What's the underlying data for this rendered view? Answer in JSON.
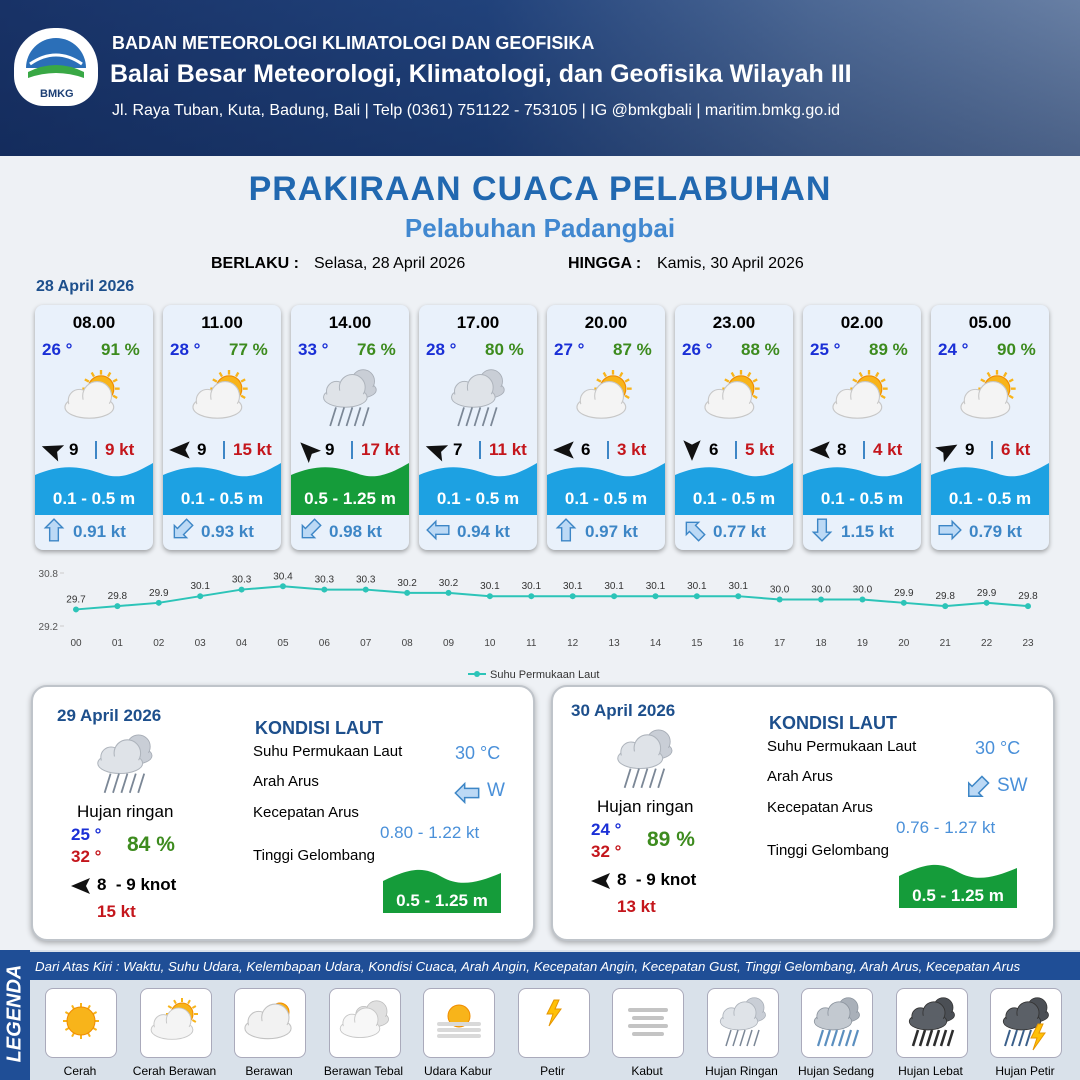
{
  "header": {
    "agency": "BADAN METEOROLOGI KLIMATOLOGI DAN GEOFISIKA",
    "office": "Balai Besar Meteorologi, Klimatologi, dan Geofisika Wilayah III",
    "address": "Jl. Raya Tuban, Kuta, Badung, Bali | Telp (0361) 751122 - 753105 | IG @bmkgbali | maritim.bmkg.go.id",
    "logo_text": "BMKG"
  },
  "title": "PRAKIRAAN CUACA PELABUHAN",
  "subtitle": "Pelabuhan Padangbai",
  "validity": {
    "from_label": "BERLAKU :",
    "from": "Selasa, 28 April 2026",
    "to_label": "HINGGA :",
    "to": "Kamis, 30 April 2026"
  },
  "day1_date": "28 April 2026",
  "cards": [
    {
      "time": "08.00",
      "temp": "26 °",
      "humidity": "91 %",
      "wind": "9",
      "gust": "9 kt",
      "wave": "0.1 - 0.5 m",
      "current": "0.91 kt"
    },
    {
      "time": "11.00",
      "temp": "28 °",
      "humidity": "77 %",
      "wind": "9",
      "gust": "15 kt",
      "wave": "0.1 - 0.5 m",
      "current": "0.93 kt"
    },
    {
      "time": "14.00",
      "temp": "33 °",
      "humidity": "76 %",
      "wind": "9",
      "gust": "17 kt",
      "wave": "0.5 - 1.25 m",
      "current": "0.98 kt"
    },
    {
      "time": "17.00",
      "temp": "28 °",
      "humidity": "80 %",
      "wind": "7",
      "gust": "11 kt",
      "wave": "0.1 - 0.5 m",
      "current": "0.94 kt"
    },
    {
      "time": "20.00",
      "temp": "27 °",
      "humidity": "87 %",
      "wind": "6",
      "gust": "3 kt",
      "wave": "0.1 - 0.5 m",
      "current": "0.97 kt"
    },
    {
      "time": "23.00",
      "temp": "26 °",
      "humidity": "88 %",
      "wind": "6",
      "gust": "5 kt",
      "wave": "0.1 - 0.5 m",
      "current": "0.77 kt"
    },
    {
      "time": "02.00",
      "temp": "25 °",
      "humidity": "89 %",
      "wind": "8",
      "gust": "4 kt",
      "wave": "0.1 - 0.5 m",
      "current": "1.15 kt"
    },
    {
      "time": "05.00",
      "temp": "24 °",
      "humidity": "90 %",
      "wind": "9",
      "gust": "6 kt",
      "wave": "0.1 - 0.5 m",
      "current": "0.79 kt"
    }
  ],
  "chart_data": {
    "type": "line",
    "categories": [
      "00",
      "01",
      "02",
      "03",
      "04",
      "05",
      "06",
      "07",
      "08",
      "09",
      "10",
      "11",
      "12",
      "13",
      "14",
      "15",
      "16",
      "17",
      "18",
      "19",
      "20",
      "21",
      "22",
      "23"
    ],
    "series": [
      {
        "name": "Suhu Permukaan Laut",
        "color": "#2cc4b8",
        "values": [
          29.7,
          29.8,
          29.9,
          30.1,
          30.3,
          30.4,
          30.3,
          30.3,
          30.2,
          30.2,
          30.1,
          30.1,
          30.1,
          30.1,
          30.1,
          30.1,
          30.1,
          30.0,
          30.0,
          30.0,
          29.9,
          29.8,
          29.9,
          29.8
        ],
        "value_labels": [
          "29.7",
          "29.8",
          "29.9",
          "30.1",
          "30.3",
          "30.4",
          "30.3",
          "30.3",
          "30.2",
          "30.2",
          "30.1",
          "30.1",
          "30.1",
          "30.1",
          "30.1",
          "30.1",
          "30.1",
          "30.0",
          "30.0",
          "30.0",
          "29.9",
          "29.8",
          "29.9",
          "29.8"
        ]
      }
    ],
    "ylim": [
      29.2,
      30.8
    ],
    "yticks": [
      29.2,
      30.8
    ],
    "legend": "bottom"
  },
  "panels": [
    {
      "date": "29 April 2026",
      "condition": "Hujan ringan",
      "temp_min": "25 °",
      "temp_max": "32 °",
      "humidity": "84 %",
      "wind": "8  - 9 knot",
      "gust": "15 kt",
      "sea_heading": "KONDISI LAUT",
      "sea_labels": [
        "Suhu Permukaan Laut",
        "Arah Arus",
        "Kecepatan Arus",
        "Tinggi Gelombang"
      ],
      "sst": "30 °C",
      "current_dir": "W",
      "current_speed": "0.80 - 1.22 kt",
      "wave": "0.5 - 1.25 m"
    },
    {
      "date": "30 April 2026",
      "condition": "Hujan ringan",
      "temp_min": "24 °",
      "temp_max": "32 °",
      "humidity": "89 %",
      "wind": "8  - 9 knot",
      "gust": "13 kt",
      "sea_heading": "KONDISI LAUT",
      "sea_labels": [
        "Suhu Permukaan Laut",
        "Arah Arus",
        "Kecepatan Arus",
        "Tinggi Gelombang"
      ],
      "sst": "30 °C",
      "current_dir": "SW",
      "current_speed": "0.76 - 1.27 kt",
      "wave": "0.5 - 1.25 m"
    }
  ],
  "legend": {
    "title": "LEGENDA",
    "description": "Dari Atas Kiri : Waktu, Suhu Udara, Kelembapan Udara, Kondisi Cuaca, Arah Angin, Kecepatan Angin, Kecepatan Gust, Tinggi Gelombang, Arah Arus, Kecepatan Arus",
    "items": [
      "Cerah",
      "Cerah Berawan",
      "Berawan",
      "Berawan Tebal",
      "Udara Kabur",
      "Petir",
      "Kabut",
      "Hujan Ringan",
      "Hujan Sedang",
      "Hujan Lebat",
      "Hujan Petir"
    ]
  }
}
